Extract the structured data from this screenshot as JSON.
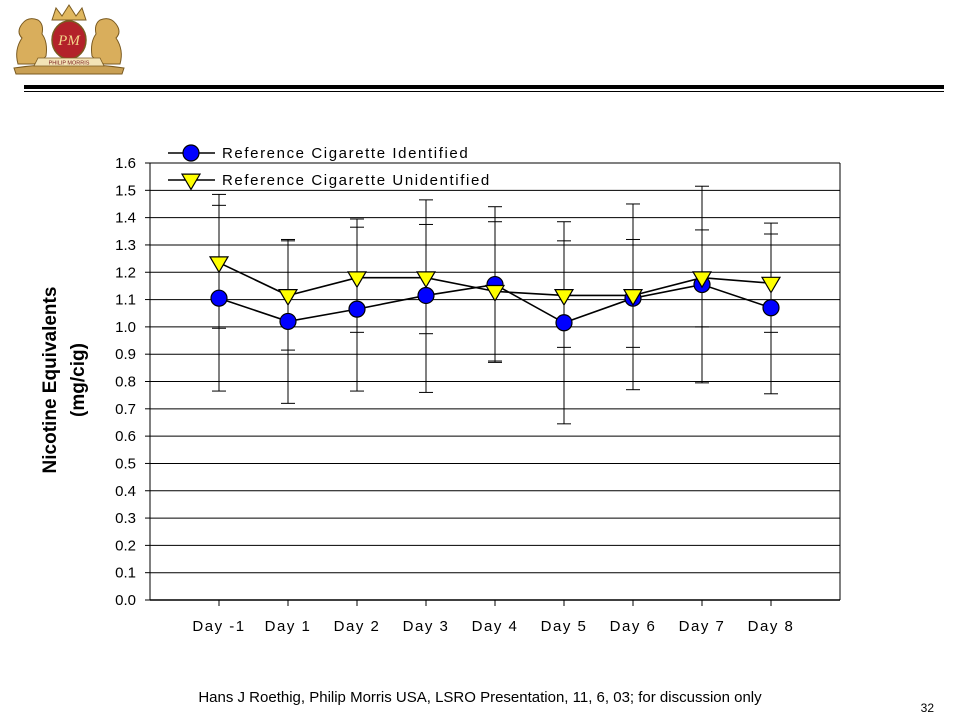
{
  "logo": {
    "monogram": "PM",
    "banner_text": "PHILIP MORRIS"
  },
  "footer": {
    "note": "Hans J Roethig, Philip Morris USA, LSRO Presentation, 11, 6, 03; for discussion only",
    "page_number": "32"
  },
  "chart_data": {
    "type": "line",
    "title": "",
    "xlabel": "",
    "ylabel": [
      "Nicotine Equivalents",
      "(mg/cig)"
    ],
    "categories": [
      "Day -1",
      "Day 1",
      "Day 2",
      "Day 3",
      "Day 4",
      "Day 5",
      "Day 6",
      "Day 7",
      "Day 8"
    ],
    "ylim": [
      0.0,
      1.6
    ],
    "yticks": [
      "0.0",
      "0.1",
      "0.2",
      "0.3",
      "0.4",
      "0.5",
      "0.6",
      "0.7",
      "0.8",
      "0.9",
      "1.0",
      "1.1",
      "1.2",
      "1.3",
      "1.4",
      "1.5",
      "1.6"
    ],
    "grid": "horizontal",
    "legend_position": "top-left",
    "series": [
      {
        "name": "Reference Cigarette Identified",
        "marker": "circle",
        "marker_color": "#0000ff",
        "values": [
          1.105,
          1.02,
          1.065,
          1.115,
          1.155,
          1.015,
          1.105,
          1.155,
          1.07
        ],
        "error_high": [
          1.445,
          1.315,
          1.365,
          1.375,
          1.385,
          1.315,
          1.32,
          1.355,
          1.34
        ],
        "error_low": [
          0.765,
          0.72,
          0.765,
          0.76,
          0.875,
          0.645,
          0.77,
          0.795,
          0.755
        ]
      },
      {
        "name": "Reference Cigarette Unidentified",
        "marker": "triangle-down",
        "marker_color": "#ffff00",
        "values": [
          1.235,
          1.115,
          1.18,
          1.18,
          1.13,
          1.115,
          1.115,
          1.18,
          1.16
        ],
        "error_high": [
          1.485,
          1.32,
          1.395,
          1.465,
          1.44,
          1.385,
          1.45,
          1.515,
          1.38
        ],
        "error_low": [
          0.995,
          0.915,
          0.98,
          0.975,
          0.87,
          0.925,
          0.925,
          1.0,
          0.98
        ]
      }
    ]
  }
}
